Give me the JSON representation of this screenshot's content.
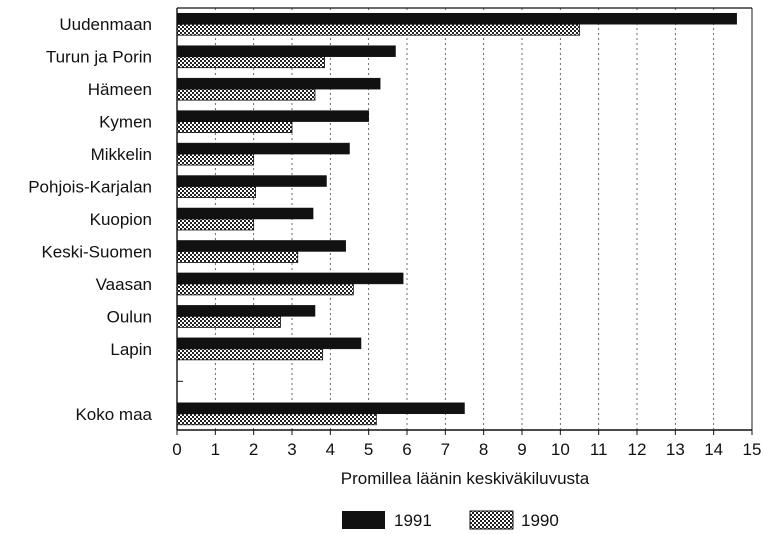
{
  "chart_data": {
    "type": "bar",
    "orientation": "horizontal",
    "categories": [
      "Uudenmaan",
      "Turun ja Porin",
      "Hämeen",
      "Kymen",
      "Mikkelin",
      "Pohjois-Karjalan",
      "Kuopion",
      "Keski-Suomen",
      "Vaasan",
      "Oulun",
      "Lapin",
      "",
      "Koko maa"
    ],
    "series": [
      {
        "name": "1991",
        "values": [
          14.6,
          5.7,
          5.3,
          5.0,
          4.5,
          3.9,
          3.55,
          4.4,
          5.9,
          3.6,
          4.8,
          null,
          7.5
        ]
      },
      {
        "name": "1990",
        "values": [
          10.5,
          3.85,
          3.6,
          3.0,
          2.0,
          2.05,
          2.0,
          3.15,
          4.6,
          2.7,
          3.8,
          null,
          5.2
        ]
      }
    ],
    "xlabel": "Promillea läänin keskiväkiluvusta",
    "xlim": [
      0,
      15
    ],
    "xticks": [
      0,
      1,
      2,
      3,
      4,
      5,
      6,
      7,
      8,
      9,
      10,
      11,
      12,
      13,
      14,
      15
    ],
    "grid": "vertical dotted",
    "legend": "bottom",
    "colors": {
      "1991": "#111111",
      "1990": "checkered"
    }
  }
}
